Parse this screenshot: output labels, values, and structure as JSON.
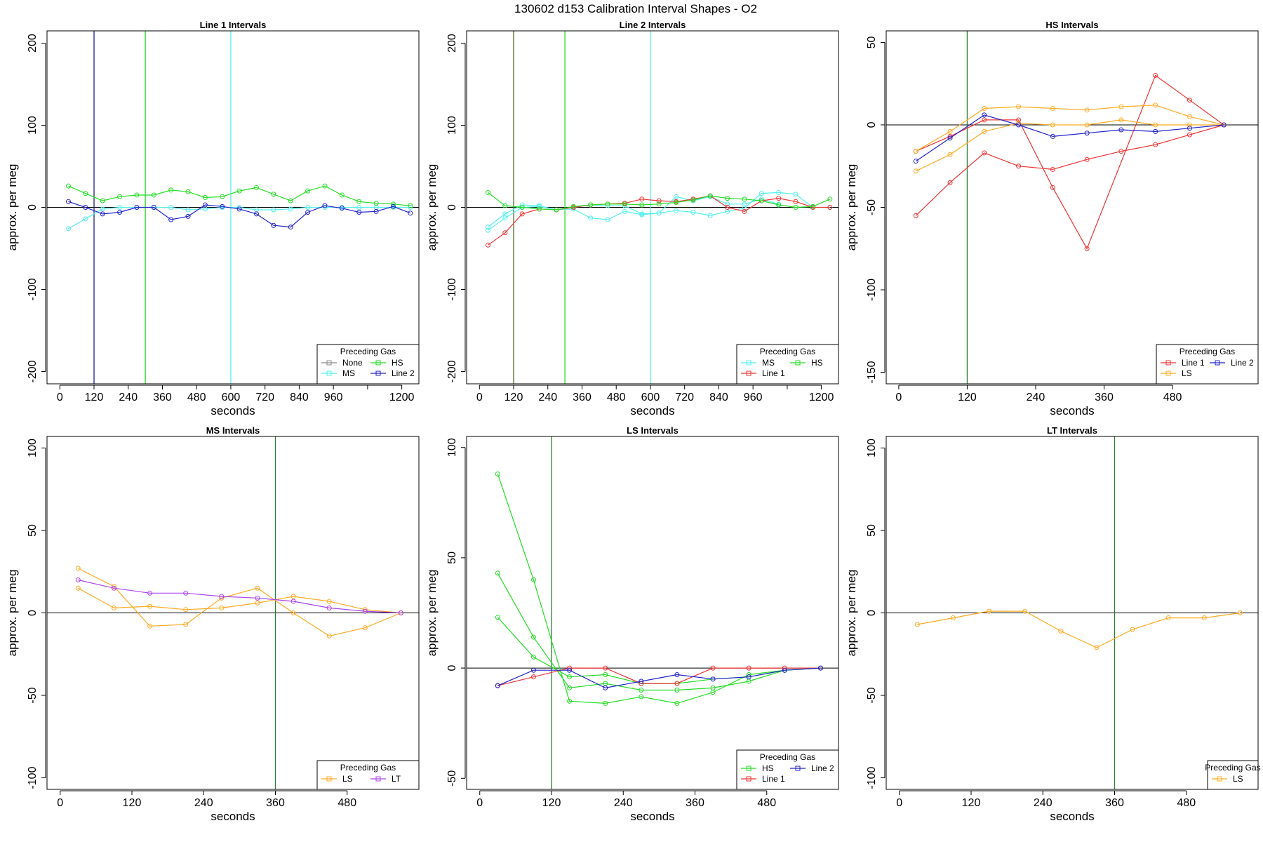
{
  "title": "130602   d153   Calibration Interval Shapes - O2",
  "chart_data": [
    {
      "type": "line",
      "title": "Line 1 Intervals",
      "xlabel": "seconds",
      "ylabel": "approx. per meg",
      "xlim": [
        -45,
        1260
      ],
      "ylim": [
        -215,
        215
      ],
      "xticks": [
        0,
        120,
        240,
        360,
        480,
        600,
        720,
        840,
        960,
        1080,
        1200
      ],
      "xtick_labels": [
        "0",
        "120",
        "240",
        "360",
        "480",
        "600",
        "720",
        "840",
        "960",
        "",
        "1200"
      ],
      "yticks": [
        -200,
        -100,
        0,
        100,
        200
      ],
      "ytick_labels": [
        "-200",
        "-100",
        "0",
        "100",
        "200"
      ],
      "vlines": [
        {
          "x": 120,
          "color": "#1a237e"
        },
        {
          "x": 300,
          "color": "#22dd22"
        },
        {
          "x": 600,
          "color": "#55eeee"
        }
      ],
      "hline": 0,
      "legend": {
        "title": "Preceding Gas",
        "columns": 2,
        "entries": [
          {
            "name": "None",
            "color": "#888888"
          },
          {
            "name": "HS",
            "color": "#22dd22"
          },
          {
            "name": "MS",
            "color": "#55eeee"
          },
          {
            "name": "Line 2",
            "color": "#2222cc"
          }
        ]
      },
      "series": [
        {
          "color": "#55eeee",
          "x": [
            30,
            90,
            150,
            210,
            270,
            330,
            390,
            450,
            510,
            570,
            630,
            690,
            750,
            810,
            870,
            930,
            990,
            1050,
            1110,
            1170,
            1230
          ],
          "y": [
            -26,
            -14,
            -2,
            0,
            0,
            0,
            0,
            -3,
            -2,
            0,
            0,
            -3,
            -3,
            -2,
            0,
            0,
            0,
            0,
            0,
            0,
            0
          ]
        },
        {
          "color": "#22dd22",
          "x": [
            30,
            90,
            150,
            210,
            270,
            330,
            390,
            450,
            510,
            570,
            630,
            690,
            750,
            810,
            870,
            930,
            990,
            1050,
            1110,
            1170,
            1230
          ],
          "y": [
            26,
            17,
            8,
            13,
            15,
            15,
            21,
            19,
            12,
            13,
            20,
            24,
            16,
            8,
            20,
            26,
            15,
            7,
            5,
            4,
            2
          ]
        },
        {
          "color": "#2222cc",
          "x": [
            30,
            90,
            150,
            210,
            270,
            330,
            390,
            450,
            510,
            570,
            630,
            690,
            750,
            810,
            870,
            930,
            990,
            1050,
            1110,
            1170,
            1230
          ],
          "y": [
            7,
            0,
            -8,
            -6,
            0,
            0,
            -15,
            -11,
            3,
            1,
            -2,
            -8,
            -22,
            -24,
            -6,
            2,
            -1,
            -6,
            -5,
            1,
            -7
          ]
        }
      ]
    },
    {
      "type": "line",
      "title": "Line 2 Intervals",
      "xlabel": "seconds",
      "ylabel": "approx. per meg",
      "xlim": [
        -45,
        1260
      ],
      "ylim": [
        -215,
        215
      ],
      "xticks": [
        0,
        120,
        240,
        360,
        480,
        600,
        720,
        840,
        960,
        1080,
        1200
      ],
      "xtick_labels": [
        "0",
        "120",
        "240",
        "360",
        "480",
        "600",
        "720",
        "840",
        "960",
        "",
        "1200"
      ],
      "yticks": [
        -200,
        -100,
        0,
        100,
        200
      ],
      "ytick_labels": [
        "-200",
        "-100",
        "0",
        "100",
        "200"
      ],
      "vlines": [
        {
          "x": 120,
          "color": "#556b2f"
        },
        {
          "x": 300,
          "color": "#22dd22"
        },
        {
          "x": 600,
          "color": "#55eeee"
        }
      ],
      "hline": 0,
      "legend": {
        "title": "Preceding Gas",
        "columns": 2,
        "entries": [
          {
            "name": "MS",
            "color": "#55eeee"
          },
          {
            "name": "HS",
            "color": "#22dd22"
          },
          {
            "name": "Line 1",
            "color": "#ee3333"
          }
        ]
      },
      "series": [
        {
          "color": "#55eeee",
          "x": [
            30,
            90,
            150,
            210,
            270,
            330,
            390,
            450,
            510,
            570,
            630,
            690,
            750,
            810,
            870,
            930,
            990,
            1050,
            1110,
            1170,
            1230
          ],
          "y": [
            -24,
            -8,
            3,
            2,
            -3,
            -2,
            -13,
            -15,
            -5,
            -9,
            -7,
            -4,
            -6,
            -10,
            -5,
            -1,
            17,
            18,
            16,
            0,
            0
          ]
        },
        {
          "color": "#55eeee",
          "x": [
            30,
            90,
            150,
            210,
            270,
            330,
            390,
            450,
            510,
            570,
            630,
            690,
            750,
            810,
            870,
            930,
            990,
            1050
          ],
          "y": [
            -28,
            -13,
            0,
            1,
            -3,
            0,
            3,
            2,
            2,
            -8,
            -7,
            13,
            8,
            13,
            4,
            4,
            10,
            4
          ]
        },
        {
          "color": "#ee3333",
          "x": [
            30,
            90,
            150,
            210,
            270,
            330,
            390,
            450,
            510,
            570,
            630,
            690,
            750,
            810,
            870,
            930,
            990,
            1050,
            1110,
            1170,
            1230
          ],
          "y": [
            -46,
            -31,
            -8,
            -2,
            -3,
            0,
            3,
            4,
            5,
            10,
            8,
            7,
            10,
            14,
            0,
            -5,
            8,
            11,
            7,
            0,
            0
          ]
        },
        {
          "color": "#22dd22",
          "x": [
            30,
            90,
            150,
            210,
            270,
            330,
            390,
            450,
            510,
            570,
            630,
            690,
            750,
            810,
            870,
            930,
            990,
            1050,
            1110,
            1170,
            1230
          ],
          "y": [
            18,
            2,
            0,
            -2,
            -3,
            1,
            3,
            4,
            4,
            3,
            4,
            6,
            9,
            14,
            11,
            10,
            8,
            3,
            0,
            1,
            10
          ]
        }
      ]
    },
    {
      "type": "line",
      "title": "HS Intervals",
      "xlabel": "seconds",
      "ylabel": "approx. per meg",
      "xlim": [
        -22,
        630
      ],
      "ylim": [
        -157,
        57
      ],
      "xticks": [
        0,
        120,
        240,
        360,
        480
      ],
      "xtick_labels": [
        "0",
        "120",
        "240",
        "360",
        "480"
      ],
      "yticks": [
        -150,
        -100,
        -50,
        0,
        50
      ],
      "ytick_labels": [
        "-150",
        "-100",
        "-50",
        "0",
        "50"
      ],
      "vlines": [
        {
          "x": 120,
          "color": "#2e7d32"
        }
      ],
      "hline": 0,
      "legend": {
        "title": "Preceding Gas",
        "columns": 2,
        "entries": [
          {
            "name": "Line 1",
            "color": "#ee3333"
          },
          {
            "name": "Line 2",
            "color": "#2222cc"
          },
          {
            "name": "LS",
            "color": "#ffaa22"
          }
        ]
      },
      "series": [
        {
          "color": "#ee3333",
          "x": [
            30,
            90,
            150,
            210,
            270,
            330,
            390,
            450,
            510,
            570
          ],
          "y": [
            -55,
            -35,
            -17,
            -25,
            -27,
            -21,
            -16,
            -12,
            -6,
            0
          ]
        },
        {
          "color": "#ee3333",
          "x": [
            30,
            90,
            150,
            210,
            270,
            330,
            450,
            510,
            570
          ],
          "y": [
            -16,
            -7,
            3,
            3,
            -38,
            -75,
            30,
            15,
            0
          ]
        },
        {
          "color": "#ffaa22",
          "x": [
            30,
            90,
            150,
            210,
            270,
            330,
            390,
            450,
            510,
            570
          ],
          "y": [
            -28,
            -18,
            -4,
            1,
            0,
            0,
            3,
            0,
            0,
            0
          ]
        },
        {
          "color": "#ffaa22",
          "x": [
            30,
            90,
            150,
            210,
            270,
            330,
            390,
            450,
            510,
            570
          ],
          "y": [
            -16,
            -4,
            10,
            11,
            10,
            9,
            11,
            12,
            5,
            0
          ]
        },
        {
          "color": "#2222cc",
          "x": [
            30,
            90,
            150,
            210,
            270,
            330,
            390,
            450,
            510,
            570
          ],
          "y": [
            -22,
            -8,
            6,
            0,
            -7,
            -5,
            -3,
            -4,
            -2,
            0
          ]
        }
      ]
    },
    {
      "type": "line",
      "title": "MS Intervals",
      "xlabel": "seconds",
      "ylabel": "approx. per meg",
      "xlim": [
        -22,
        600
      ],
      "ylim": [
        -107,
        107
      ],
      "xticks": [
        0,
        120,
        240,
        360,
        480
      ],
      "xtick_labels": [
        "0",
        "120",
        "240",
        "360",
        "480"
      ],
      "yticks": [
        -100,
        -50,
        0,
        50,
        100
      ],
      "ytick_labels": [
        "-100",
        "-50",
        "0",
        "50",
        "100"
      ],
      "vlines": [
        {
          "x": 360,
          "color": "#2e7d32"
        }
      ],
      "hline": 0,
      "legend": {
        "title": "Preceding Gas",
        "columns": 2,
        "entries": [
          {
            "name": "LS",
            "color": "#ffaa22"
          },
          {
            "name": "LT",
            "color": "#aa44ee"
          }
        ]
      },
      "series": [
        {
          "color": "#ffaa22",
          "x": [
            30,
            90,
            150,
            210,
            270,
            330,
            390,
            450,
            510,
            570
          ],
          "y": [
            27,
            16,
            -8,
            -7,
            9,
            15,
            0,
            -14,
            -9,
            0
          ]
        },
        {
          "color": "#ffaa22",
          "x": [
            30,
            90,
            150,
            210,
            270,
            330,
            390,
            450,
            510,
            570
          ],
          "y": [
            15,
            3,
            4,
            2,
            3,
            6,
            10,
            7,
            2,
            0
          ]
        },
        {
          "color": "#aa44ee",
          "x": [
            30,
            90,
            150,
            210,
            270,
            330,
            390,
            450,
            510,
            570
          ],
          "y": [
            20,
            15,
            12,
            12,
            10,
            9,
            7,
            3,
            1,
            0
          ]
        }
      ]
    },
    {
      "type": "line",
      "title": "LS Intervals",
      "xlabel": "seconds",
      "ylabel": "approx. per meg",
      "xlim": [
        -22,
        600
      ],
      "ylim": [
        -55,
        105
      ],
      "xticks": [
        0,
        120,
        240,
        360,
        480
      ],
      "xtick_labels": [
        "0",
        "120",
        "240",
        "360",
        "480"
      ],
      "yticks": [
        -50,
        0,
        50,
        100
      ],
      "ytick_labels": [
        "-50",
        "0",
        "50",
        "100"
      ],
      "vlines": [
        {
          "x": 120,
          "color": "#2e7d32"
        }
      ],
      "hline": 0,
      "legend": {
        "title": "Preceding Gas",
        "columns": 2,
        "entries": [
          {
            "name": "HS",
            "color": "#22dd22"
          },
          {
            "name": "Line 2",
            "color": "#2222cc"
          },
          {
            "name": "Line 1",
            "color": "#ee3333"
          }
        ]
      },
      "series": [
        {
          "color": "#22dd22",
          "x": [
            30,
            90,
            150,
            210,
            270,
            330,
            390,
            450,
            510,
            570
          ],
          "y": [
            88,
            40,
            -15,
            -16,
            -13,
            -16,
            -11,
            -3,
            -1,
            0
          ]
        },
        {
          "color": "#22dd22",
          "x": [
            30,
            90,
            150,
            210,
            270,
            330,
            390,
            450,
            510,
            570
          ],
          "y": [
            43,
            14,
            -9,
            -7,
            -10,
            -10,
            -9,
            -6,
            -1,
            0
          ]
        },
        {
          "color": "#22dd22",
          "x": [
            30,
            90,
            150,
            210,
            270,
            330,
            390,
            450,
            510,
            570
          ],
          "y": [
            23,
            5,
            -4,
            -3,
            -7,
            -7,
            -5,
            -4,
            -1,
            0
          ]
        },
        {
          "color": "#ee3333",
          "x": [
            30,
            90,
            150,
            210,
            270,
            330,
            390,
            450,
            510,
            570
          ],
          "y": [
            -8,
            -4,
            0,
            0,
            -7,
            -7,
            0,
            0,
            0,
            0
          ]
        },
        {
          "color": "#2222cc",
          "x": [
            30,
            90,
            150,
            210,
            270,
            330,
            390,
            450,
            510,
            570
          ],
          "y": [
            -8,
            -1,
            -1,
            -9,
            -6,
            -3,
            -5,
            -4,
            -1,
            0
          ]
        }
      ]
    },
    {
      "type": "line",
      "title": "LT Intervals",
      "xlabel": "seconds",
      "ylabel": "approx. per meg",
      "xlim": [
        -22,
        600
      ],
      "ylim": [
        -107,
        107
      ],
      "xticks": [
        0,
        120,
        240,
        360,
        480
      ],
      "xtick_labels": [
        "0",
        "120",
        "240",
        "360",
        "480"
      ],
      "yticks": [
        -100,
        -50,
        0,
        50,
        100
      ],
      "ytick_labels": [
        "-100",
        "-50",
        "0",
        "50",
        "100"
      ],
      "vlines": [
        {
          "x": 360,
          "color": "#2e7d32"
        }
      ],
      "hline": 0,
      "legend": {
        "title": "Preceding Gas",
        "columns": 1,
        "entries": [
          {
            "name": "LS",
            "color": "#ffaa22"
          }
        ]
      },
      "series": [
        {
          "color": "#ffaa22",
          "x": [
            30,
            90,
            150,
            210,
            270,
            330,
            390,
            450,
            510,
            570
          ],
          "y": [
            -7,
            -3,
            1,
            1,
            -11,
            -21,
            -10,
            -3,
            -3,
            0
          ]
        }
      ]
    }
  ]
}
